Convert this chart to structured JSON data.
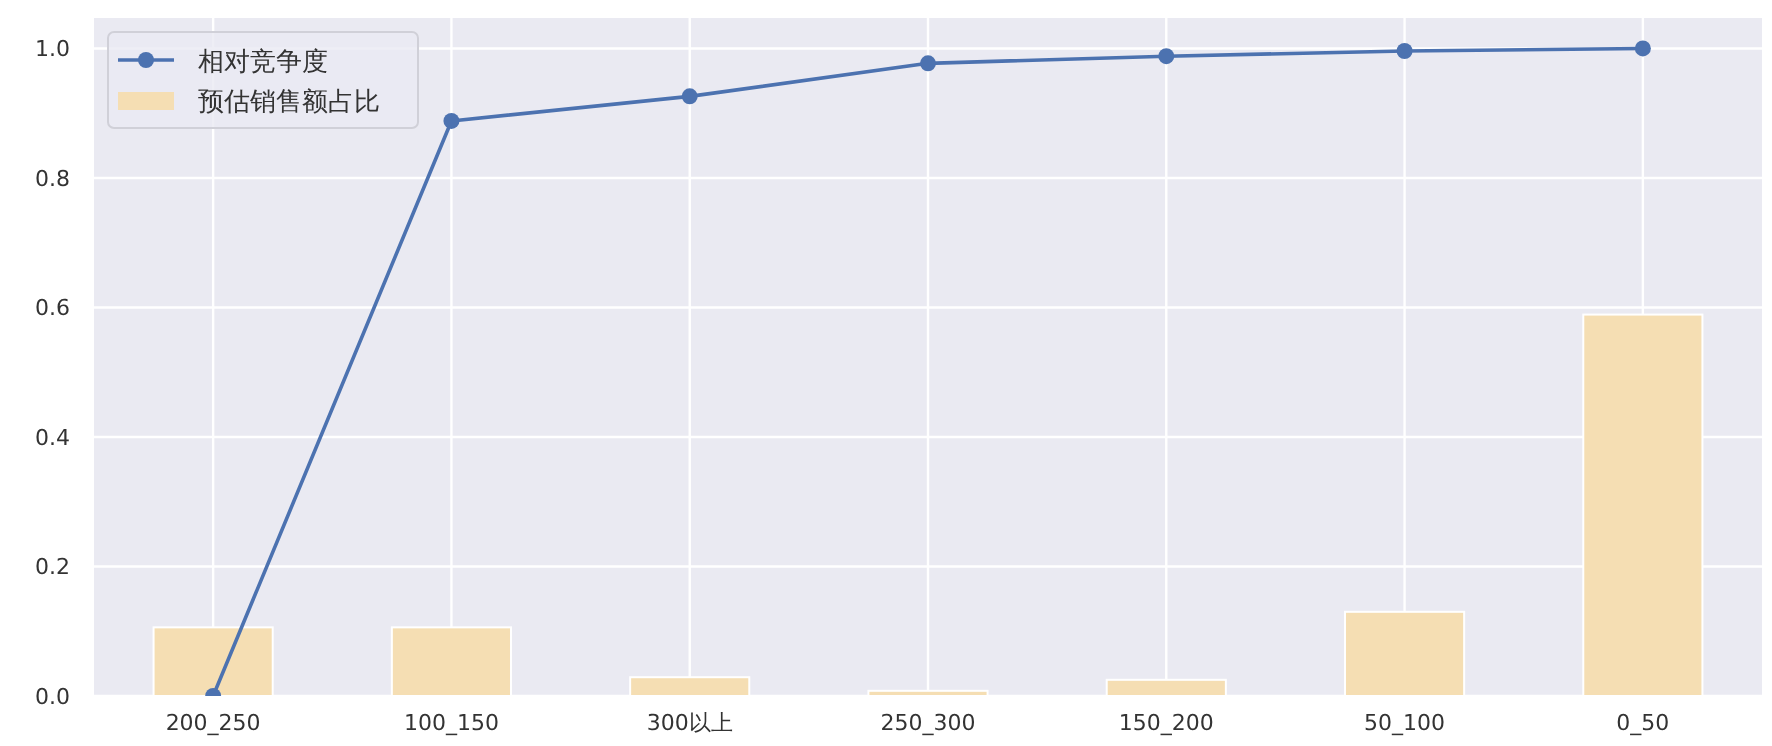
{
  "chart_data": {
    "type": "bar",
    "categories": [
      "200_250",
      "100_150",
      "300以上",
      "250_300",
      "150_200",
      "50_100",
      "0_50"
    ],
    "series": [
      {
        "name": "相对竞争度",
        "type": "line",
        "color": "#4c72b0",
        "marker": "circle",
        "values": [
          0.0,
          0.888,
          0.926,
          0.977,
          0.988,
          0.996,
          1.0
        ]
      },
      {
        "name": "预估销售额占比",
        "color": "#f5deb3",
        "values": [
          0.106,
          0.106,
          0.029,
          0.008,
          0.025,
          0.13,
          0.589
        ]
      }
    ],
    "ylim": [
      0,
      1.047
    ],
    "yticks": [
      {
        "value": 0,
        "label": "0.0"
      },
      0.2,
      0.4,
      0.6,
      0.8,
      {
        "value": 1,
        "label": "1.0"
      }
    ],
    "grid": true,
    "legend": "top left"
  }
}
